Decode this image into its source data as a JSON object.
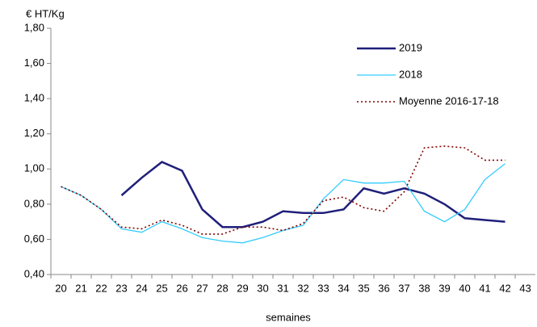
{
  "chart_data": {
    "type": "line",
    "y_axis_label": "€ HT/Kg",
    "x_axis_label": "semaines",
    "categories": [
      "20",
      "21",
      "22",
      "23",
      "24",
      "25",
      "26",
      "27",
      "28",
      "29",
      "30",
      "31",
      "32",
      "33",
      "34",
      "35",
      "36",
      "37",
      "38",
      "39",
      "40",
      "41",
      "42",
      "43"
    ],
    "ylim": [
      0.4,
      1.8
    ],
    "yticks": [
      {
        "value": 0.4,
        "label": "0,40"
      },
      {
        "value": 0.6,
        "label": "0,60"
      },
      {
        "value": 0.8,
        "label": "0,80"
      },
      {
        "value": 1.0,
        "label": "1,00"
      },
      {
        "value": 1.2,
        "label": "1,20"
      },
      {
        "value": 1.4,
        "label": "1,40"
      },
      {
        "value": 1.6,
        "label": "1,60"
      },
      {
        "value": 1.8,
        "label": "1,80"
      }
    ],
    "grid": false,
    "legend": "upper right",
    "series": [
      {
        "name": "2019",
        "color": "#1f1f7a",
        "style": "solid",
        "values": [
          null,
          null,
          null,
          0.85,
          0.95,
          1.04,
          0.99,
          0.77,
          0.67,
          0.67,
          0.7,
          0.76,
          0.75,
          0.75,
          0.77,
          0.89,
          0.86,
          0.89,
          0.86,
          0.8,
          0.72,
          0.71,
          0.7,
          null
        ]
      },
      {
        "name": "2018",
        "color": "#33ccff",
        "style": "solid",
        "values": [
          0.9,
          0.85,
          0.77,
          0.66,
          0.64,
          0.7,
          0.66,
          0.61,
          0.59,
          0.58,
          0.61,
          0.65,
          0.68,
          0.83,
          0.94,
          0.92,
          0.92,
          0.93,
          0.76,
          0.7,
          0.77,
          0.94,
          1.03,
          null
        ]
      },
      {
        "name": "Moyenne 2016-17-18",
        "color": "#800000",
        "style": "dotted",
        "values": [
          0.9,
          0.85,
          0.77,
          0.67,
          0.66,
          0.71,
          0.68,
          0.63,
          0.63,
          0.67,
          0.67,
          0.65,
          0.69,
          0.82,
          0.84,
          0.78,
          0.76,
          0.87,
          1.12,
          1.13,
          1.12,
          1.05,
          1.05,
          null
        ]
      }
    ]
  }
}
